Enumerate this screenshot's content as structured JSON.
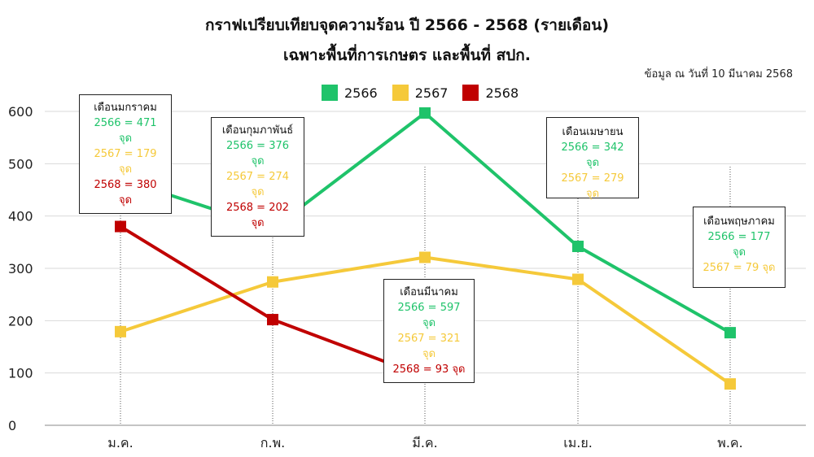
{
  "title_line1": "กราฟเปรียบเทียบจุดความร้อน ปี 2566 - 2568 (รายเดือน)",
  "title_line2": "เฉพาะพื้นที่การเกษตร และพื้นที่ สปก.",
  "data_note": "ข้อมูล ณ วันที่ 10 มีนาคม 2568",
  "colors": {
    "s2566": "#1fc36a",
    "s2567": "#f5c93a",
    "s2568": "#c00000"
  },
  "chart_data": {
    "type": "line",
    "categories": [
      "ม.ค.",
      "ก.พ.",
      "มี.ค.",
      "เม.ย.",
      "พ.ค."
    ],
    "ylim": [
      0,
      600
    ],
    "yticks": [
      0,
      100,
      200,
      300,
      400,
      500,
      600
    ],
    "grid": true,
    "legend_position": "top-center",
    "series": [
      {
        "name": "2566",
        "values": [
          471,
          376,
          597,
          342,
          177
        ]
      },
      {
        "name": "2567",
        "values": [
          179,
          274,
          321,
          279,
          79
        ]
      },
      {
        "name": "2568",
        "values": [
          380,
          202,
          93,
          null,
          null
        ]
      }
    ],
    "annotations": [
      {
        "header": "เดือนมกราคม",
        "lines": [
          "2566 = 471 จุด",
          "2567 = 179 จุด",
          "2568 = 380 จุด"
        ]
      },
      {
        "header": "เดือนกุมภาพันธ์",
        "lines": [
          "2566 = 376 จุด",
          "2567 = 274 จุด",
          "2568 = 202 จุด"
        ]
      },
      {
        "header": "เดือนมีนาคม",
        "lines": [
          "2566 = 597 จุด",
          "2567 = 321 จุด",
          "2568 = 93 จุด"
        ]
      },
      {
        "header": "เดือนเมษายน",
        "lines": [
          "2566 = 342 จุด",
          "2567 = 279 จุด"
        ]
      },
      {
        "header": "เดือนพฤษภาคม",
        "lines": [
          "2566 = 177 จุด",
          "2567 = 79 จุด"
        ]
      }
    ]
  }
}
